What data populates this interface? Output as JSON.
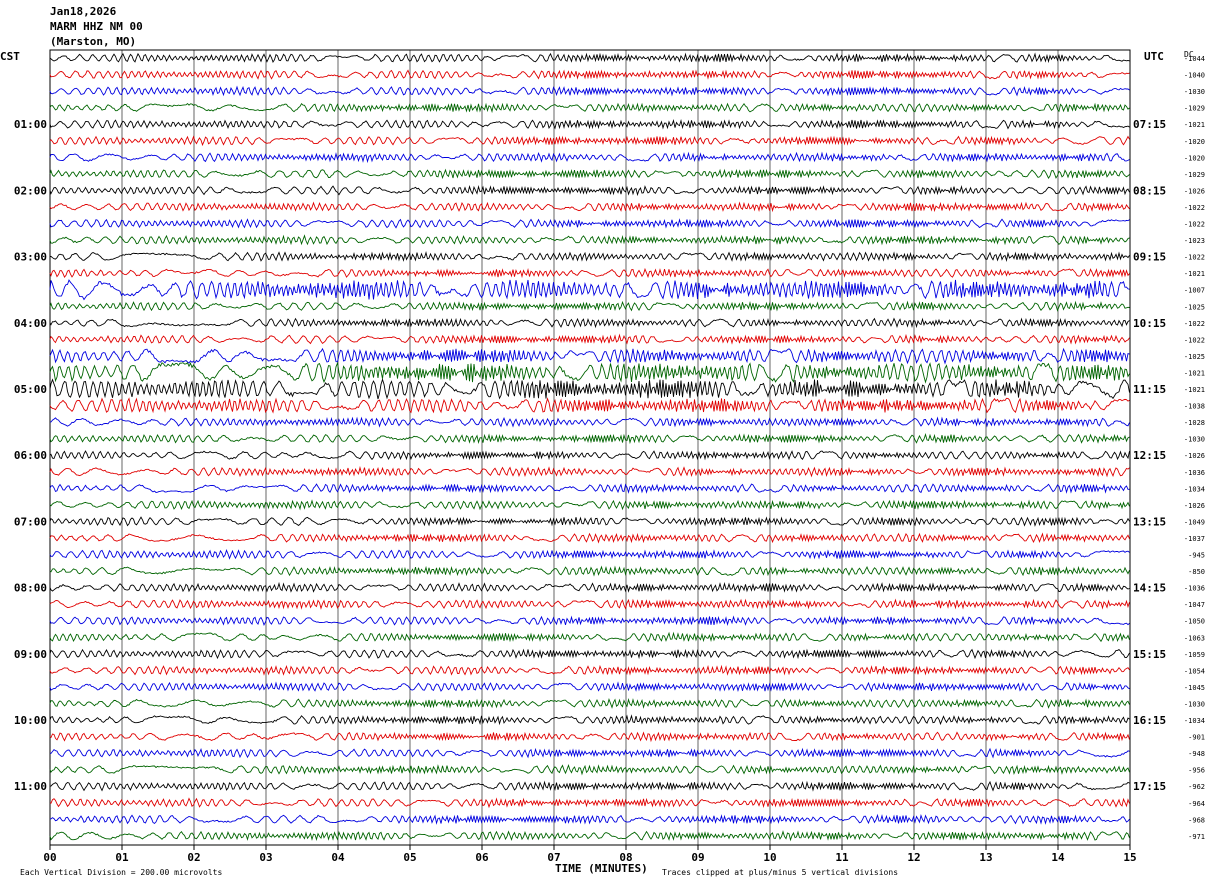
{
  "header": {
    "date": "Jan18,2026",
    "station": "MARM HHZ NM 00",
    "location": "(Marston, MO)"
  },
  "left_tz": "CST",
  "right_tz": "UTC",
  "dc_label": "DC",
  "left_hours": [
    "01:00",
    "02:00",
    "03:00",
    "04:00",
    "05:00",
    "06:00",
    "07:00",
    "08:00",
    "09:00",
    "10:00",
    "11:00"
  ],
  "right_hours": [
    "07:15",
    "08:15",
    "09:15",
    "10:15",
    "11:15",
    "12:15",
    "13:15",
    "14:15",
    "15:15",
    "16:15",
    "17:15"
  ],
  "x_ticks": [
    "00",
    "01",
    "02",
    "03",
    "04",
    "05",
    "06",
    "07",
    "08",
    "09",
    "10",
    "11",
    "12",
    "13",
    "14",
    "15"
  ],
  "x_axis_label": "TIME (MINUTES)",
  "footer_left": "Each Vertical Division =  200.00 microvolts",
  "footer_right": "Traces clipped at plus/minus 5 vertical divisions",
  "chart_data": {
    "type": "line",
    "x_range_minutes": [
      0,
      15
    ],
    "trace_colors": [
      "#000000",
      "#e00000",
      "#0000e0",
      "#006400"
    ],
    "dc_offsets": [
      "-1044",
      "-1040",
      "-1030",
      "-1029",
      "-1021",
      "-1020",
      "-1020",
      "-1029",
      "-1026",
      "-1022",
      "-1022",
      "-1023",
      "-1022",
      "-1021",
      "-1007",
      "-1025",
      "-1022",
      "-1022",
      "-1025",
      "-1021",
      "-1021",
      "-1038",
      "-1028",
      "-1030",
      "-1026",
      "-1036",
      "-1034",
      "-1026",
      "-1049",
      "-1037",
      "-945",
      "-850",
      "-1036",
      "-1047",
      "-1050",
      "-1063",
      "-1059",
      "-1054",
      "-1045",
      "-1030",
      "-1034",
      "-901",
      "-948",
      "-956",
      "-962",
      "-964",
      "-968",
      "-971"
    ],
    "amplitude_levels": [
      1,
      1,
      1,
      1,
      1,
      1,
      1,
      1,
      1,
      1,
      1,
      1,
      1,
      1,
      3,
      1,
      1,
      1,
      2,
      3,
      3,
      2,
      1,
      1,
      1,
      1,
      1,
      1,
      1,
      1,
      1,
      1,
      1,
      1,
      1,
      1,
      1,
      1,
      1,
      1,
      1,
      1,
      1,
      1,
      1,
      1,
      1,
      1
    ]
  }
}
